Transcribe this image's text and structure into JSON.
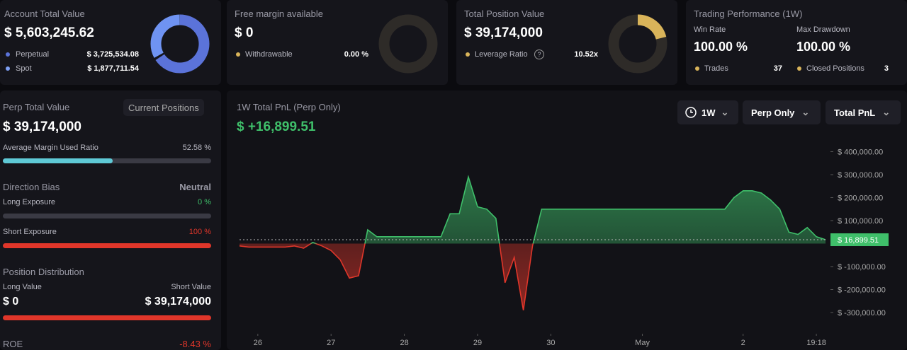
{
  "cards": [
    {
      "title": "Account Total Value",
      "value": "$ 5,603,245.62",
      "rows": [
        {
          "label": "Perpetual",
          "value": "$ 3,725,534.08"
        },
        {
          "label": "Spot",
          "value": "$ 1,877,711.54"
        }
      ]
    },
    {
      "title": "Free margin available",
      "value": "$ 0",
      "rows": [
        {
          "label": "Withdrawable",
          "value": "0.00 %"
        }
      ]
    },
    {
      "title": "Total Position Value",
      "value": "$ 39,174,000",
      "rows": [
        {
          "label": "Leverage Ratio",
          "value": "10.52x"
        }
      ]
    },
    {
      "title": "Trading Performance (1W)",
      "stats": [
        {
          "label": "Win Rate",
          "value": "100.00 %"
        },
        {
          "label": "Max Drawdown",
          "value": "100.00 %"
        }
      ],
      "rows": [
        {
          "label": "Trades",
          "value": "37"
        },
        {
          "label": "Closed Positions",
          "value": "3"
        }
      ]
    }
  ],
  "perp": {
    "title": "Perp Total Value",
    "button": "Current Positions",
    "value": "$ 39,174,000",
    "margin_label": "Average Margin Used Ratio",
    "margin_value": "52.58 %",
    "bias_label": "Direction Bias",
    "bias_value": "Neutral",
    "long_label": "Long Exposure",
    "long_value": "0 %",
    "short_label": "Short Exposure",
    "short_value": "100 %",
    "dist_title": "Position Distribution",
    "long_value_label": "Long Value",
    "short_value_label": "Short Value",
    "long_amount": "$ 0",
    "short_amount": "$ 39,174,000",
    "roe_label": "ROE",
    "roe_value": "-8.43 %"
  },
  "pnl_panel": {
    "title": "1W Total PnL (Perp Only)",
    "total": "$ +16,899.51",
    "controls": [
      "1W",
      "Perp Only",
      "Total PnL"
    ]
  },
  "chart_data": {
    "type": "line",
    "values": [
      -10000,
      -15000,
      -15000,
      -15000,
      -15000,
      -15000,
      -10000,
      -20000,
      5000,
      -10000,
      -30000,
      -70000,
      -150000,
      -140000,
      60000,
      30000,
      30000,
      30000,
      30000,
      30000,
      30000,
      30000,
      30000,
      130000,
      130000,
      290000,
      160000,
      150000,
      110000,
      -170000,
      -60000,
      -290000,
      -10000,
      150000,
      150000,
      150000,
      150000,
      150000,
      150000,
      150000,
      150000,
      150000,
      150000,
      150000,
      150000,
      150000,
      150000,
      150000,
      150000,
      150000,
      150000,
      150000,
      150000,
      150000,
      200000,
      230000,
      230000,
      220000,
      190000,
      150000,
      50000,
      40000,
      70000,
      30000,
      16899.51
    ],
    "last_label": "$ 16,899.51",
    "up_color": "#3fbf6a",
    "down_color": "#e0362a",
    "xlim": [
      0,
      64
    ],
    "xticks": [
      {
        "value": 2,
        "label": "26"
      },
      {
        "value": 10,
        "label": "27"
      },
      {
        "value": 18,
        "label": "28"
      },
      {
        "value": 26,
        "label": "29"
      },
      {
        "value": 34,
        "label": "30"
      },
      {
        "value": 44,
        "label": "May"
      },
      {
        "value": 55,
        "label": "2"
      },
      {
        "value": 63,
        "label": "19:18"
      }
    ],
    "ylim": [
      -380000,
      460000
    ],
    "yticks": [
      {
        "value": 400000,
        "label": "$ 400,000.00"
      },
      {
        "value": 300000,
        "label": "$ 300,000.00"
      },
      {
        "value": 200000,
        "label": "$ 200,000.00"
      },
      {
        "value": 100000,
        "label": "$ 100,000.00"
      },
      {
        "value": -100000,
        "label": "$ -100,000.00"
      },
      {
        "value": -200000,
        "label": "$ -200,000.00"
      },
      {
        "value": -300000,
        "label": "$ -300,000.00"
      }
    ]
  }
}
